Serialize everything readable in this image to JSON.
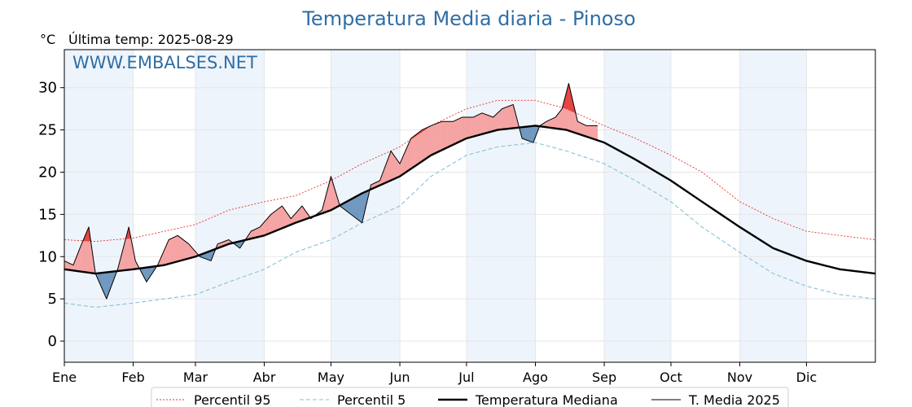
{
  "chart_data": {
    "type": "line",
    "title": "Temperatura Media diaria - Pinoso",
    "unit": "°C",
    "subtitle": "Última temp: 2025-08-29",
    "watermark": "WWW.EMBALSES.NET",
    "xlabel": "",
    "ylabel": "",
    "ylim": [
      -2.5,
      34.5
    ],
    "xlim": [
      1,
      366
    ],
    "yticks": [
      0,
      5,
      10,
      15,
      20,
      25,
      30
    ],
    "grid": true,
    "legend_position": "bottom-center",
    "months": [
      {
        "label": "Ene",
        "day": 1
      },
      {
        "label": "Feb",
        "day": 32
      },
      {
        "label": "Mar",
        "day": 60
      },
      {
        "label": "Abr",
        "day": 91
      },
      {
        "label": "May",
        "day": 121
      },
      {
        "label": "Jun",
        "day": 152
      },
      {
        "label": "Jul",
        "day": 182
      },
      {
        "label": "Ago",
        "day": 213
      },
      {
        "label": "Sep",
        "day": 244
      },
      {
        "label": "Oct",
        "day": 274
      },
      {
        "label": "Nov",
        "day": 305
      },
      {
        "label": "Dic",
        "day": 335
      }
    ],
    "series": [
      {
        "name": "Percentil 95",
        "color": "#e8302a",
        "style": "dotted",
        "x": [
          1,
          15,
          32,
          46,
          60,
          75,
          91,
          105,
          121,
          135,
          152,
          166,
          182,
          196,
          213,
          227,
          244,
          258,
          274,
          288,
          305,
          320,
          335,
          350,
          366
        ],
        "values": [
          12.0,
          11.8,
          12.2,
          13.0,
          13.8,
          15.5,
          16.5,
          17.2,
          19.0,
          21.0,
          23.0,
          25.5,
          27.5,
          28.5,
          28.5,
          27.5,
          25.5,
          24.0,
          22.0,
          20.0,
          16.5,
          14.5,
          13.0,
          12.5,
          12.0
        ]
      },
      {
        "name": "Percentil 5",
        "color": "#86c2d8",
        "style": "dashed",
        "x": [
          1,
          15,
          32,
          46,
          60,
          75,
          91,
          105,
          121,
          135,
          152,
          166,
          182,
          196,
          213,
          227,
          244,
          258,
          274,
          288,
          305,
          320,
          335,
          350,
          366
        ],
        "values": [
          4.5,
          4.0,
          4.5,
          5.0,
          5.5,
          7.0,
          8.5,
          10.5,
          12.0,
          14.0,
          16.0,
          19.5,
          22.0,
          23.0,
          23.5,
          22.5,
          21.0,
          19.0,
          16.5,
          13.5,
          10.5,
          8.0,
          6.5,
          5.5,
          5.0
        ]
      },
      {
        "name": "Temperatura Mediana",
        "color": "#000000",
        "style": "thick",
        "x": [
          1,
          15,
          32,
          46,
          60,
          75,
          91,
          105,
          121,
          135,
          152,
          166,
          182,
          196,
          213,
          227,
          244,
          258,
          274,
          288,
          305,
          320,
          335,
          350,
          366
        ],
        "values": [
          8.5,
          8.0,
          8.5,
          9.0,
          10.0,
          11.5,
          12.5,
          14.0,
          15.5,
          17.5,
          19.5,
          22.0,
          24.0,
          25.0,
          25.5,
          25.0,
          23.5,
          21.5,
          19.0,
          16.5,
          13.5,
          11.0,
          9.5,
          8.5,
          8.0
        ]
      },
      {
        "name": "T. Media 2025",
        "color": "#000000",
        "style": "thin",
        "x": [
          1,
          5,
          8,
          12,
          15,
          20,
          25,
          30,
          33,
          38,
          43,
          48,
          52,
          57,
          62,
          67,
          70,
          75,
          80,
          85,
          89,
          94,
          99,
          103,
          108,
          112,
          117,
          121,
          125,
          130,
          135,
          139,
          143,
          148,
          152,
          157,
          162,
          166,
          171,
          176,
          180,
          185,
          189,
          194,
          198,
          203,
          207,
          212,
          215,
          218,
          222,
          225,
          228,
          232,
          236,
          241
        ],
        "values": [
          9.5,
          9.0,
          11.0,
          13.5,
          8.0,
          5.0,
          8.5,
          13.5,
          9.5,
          7.0,
          9.0,
          12.0,
          12.5,
          11.5,
          10.0,
          9.5,
          11.5,
          12.0,
          11.0,
          13.0,
          13.5,
          15.0,
          16.0,
          14.5,
          16.0,
          14.5,
          15.5,
          19.5,
          16.0,
          15.0,
          14.0,
          18.5,
          19.0,
          22.5,
          21.0,
          24.0,
          25.0,
          25.5,
          26.0,
          26.0,
          26.5,
          26.5,
          27.0,
          26.5,
          27.5,
          28.0,
          24.0,
          23.5,
          25.5,
          26.0,
          26.5,
          27.5,
          30.5,
          26.0,
          25.5,
          25.5
        ]
      }
    ],
    "legend": [
      {
        "label": "Percentil 95",
        "style": "dotted",
        "color": "#e8302a"
      },
      {
        "label": "Percentil 5",
        "style": "dashed",
        "color": "#86c2d8"
      },
      {
        "label": "Temperatura Mediana",
        "style": "thick",
        "color": "#000000"
      },
      {
        "label": "T. Media 2025",
        "style": "thin",
        "color": "#000000"
      }
    ],
    "colors": {
      "above_median_fill": "#f5a3a3",
      "above_p95_fill": "#e53c3c",
      "below_median_fill": "#6f98c0",
      "below_p5_fill": "#1f5d9a",
      "month_band": "#eef4fb",
      "grid": "#e6e6e6"
    }
  }
}
